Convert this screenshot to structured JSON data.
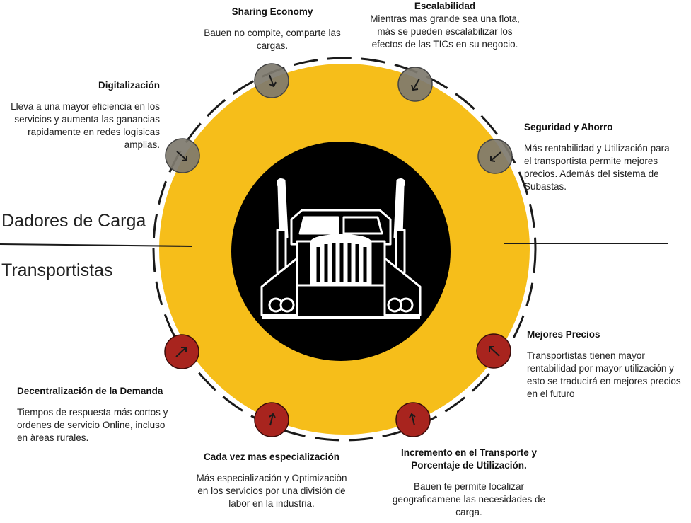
{
  "side_labels": {
    "top": "Dadores de Carga",
    "bottom": "Transportistas"
  },
  "nodes": [
    {
      "title": "Sharing Economy",
      "body": "Bauen no compite,  comparte las\ncargas.",
      "kind": "top"
    },
    {
      "title": "Escalabilidad",
      "body": "Mientras mas grande sea una flota,\nmás se pueden escalabilizar los\nefectos de las TICs en su negocio.",
      "kind": "top"
    },
    {
      "title": "Digitalización",
      "body": "Lleva a una mayor eficiencia en los\nservicios y aumenta las ganancias\nrapidamente en redes logisicas\namplias.",
      "kind": "top"
    },
    {
      "title": "Seguridad y Ahorro",
      "body": "Más rentabilidad y Utilización para\nel transportista permite mejores\nprecios. Además del sistema de\nSubastas.",
      "kind": "top"
    },
    {
      "title": "Mejores Precios",
      "body": "Transportistas tienen mayor\nrentabilidad por mayor utilización y\nesto se traducirá en mejores precios\nen el futuro",
      "kind": "bottom"
    },
    {
      "title": "Decentralización de la Demanda",
      "body": "Tiempos de respuesta más cortos y\nordenes de servicio Online, incluso\nen àreas rurales.",
      "kind": "bottom"
    },
    {
      "title": "Cada vez mas especialización",
      "body": "Más especialización y Optimizaciòn\nen los servicios por una división de\nlabor en la industria.",
      "kind": "bottom"
    },
    {
      "title": "Incremento en el Transporte y\nPorcentaje de Utilización.",
      "body": "Bauen te permite localizar\ngeograficamene las necesidades de\ncarga.",
      "kind": "bottom"
    }
  ],
  "colors": {
    "ring": "#F6BE1A",
    "center": "#000000",
    "top_marker": "#7E7A6E",
    "bottom_marker": "#A8241E",
    "divider": "#1a1a1a"
  },
  "icons": {
    "center": "truck-icon",
    "top_marker": "arrow-down-icon",
    "bottom_marker": "arrow-up-icon"
  }
}
